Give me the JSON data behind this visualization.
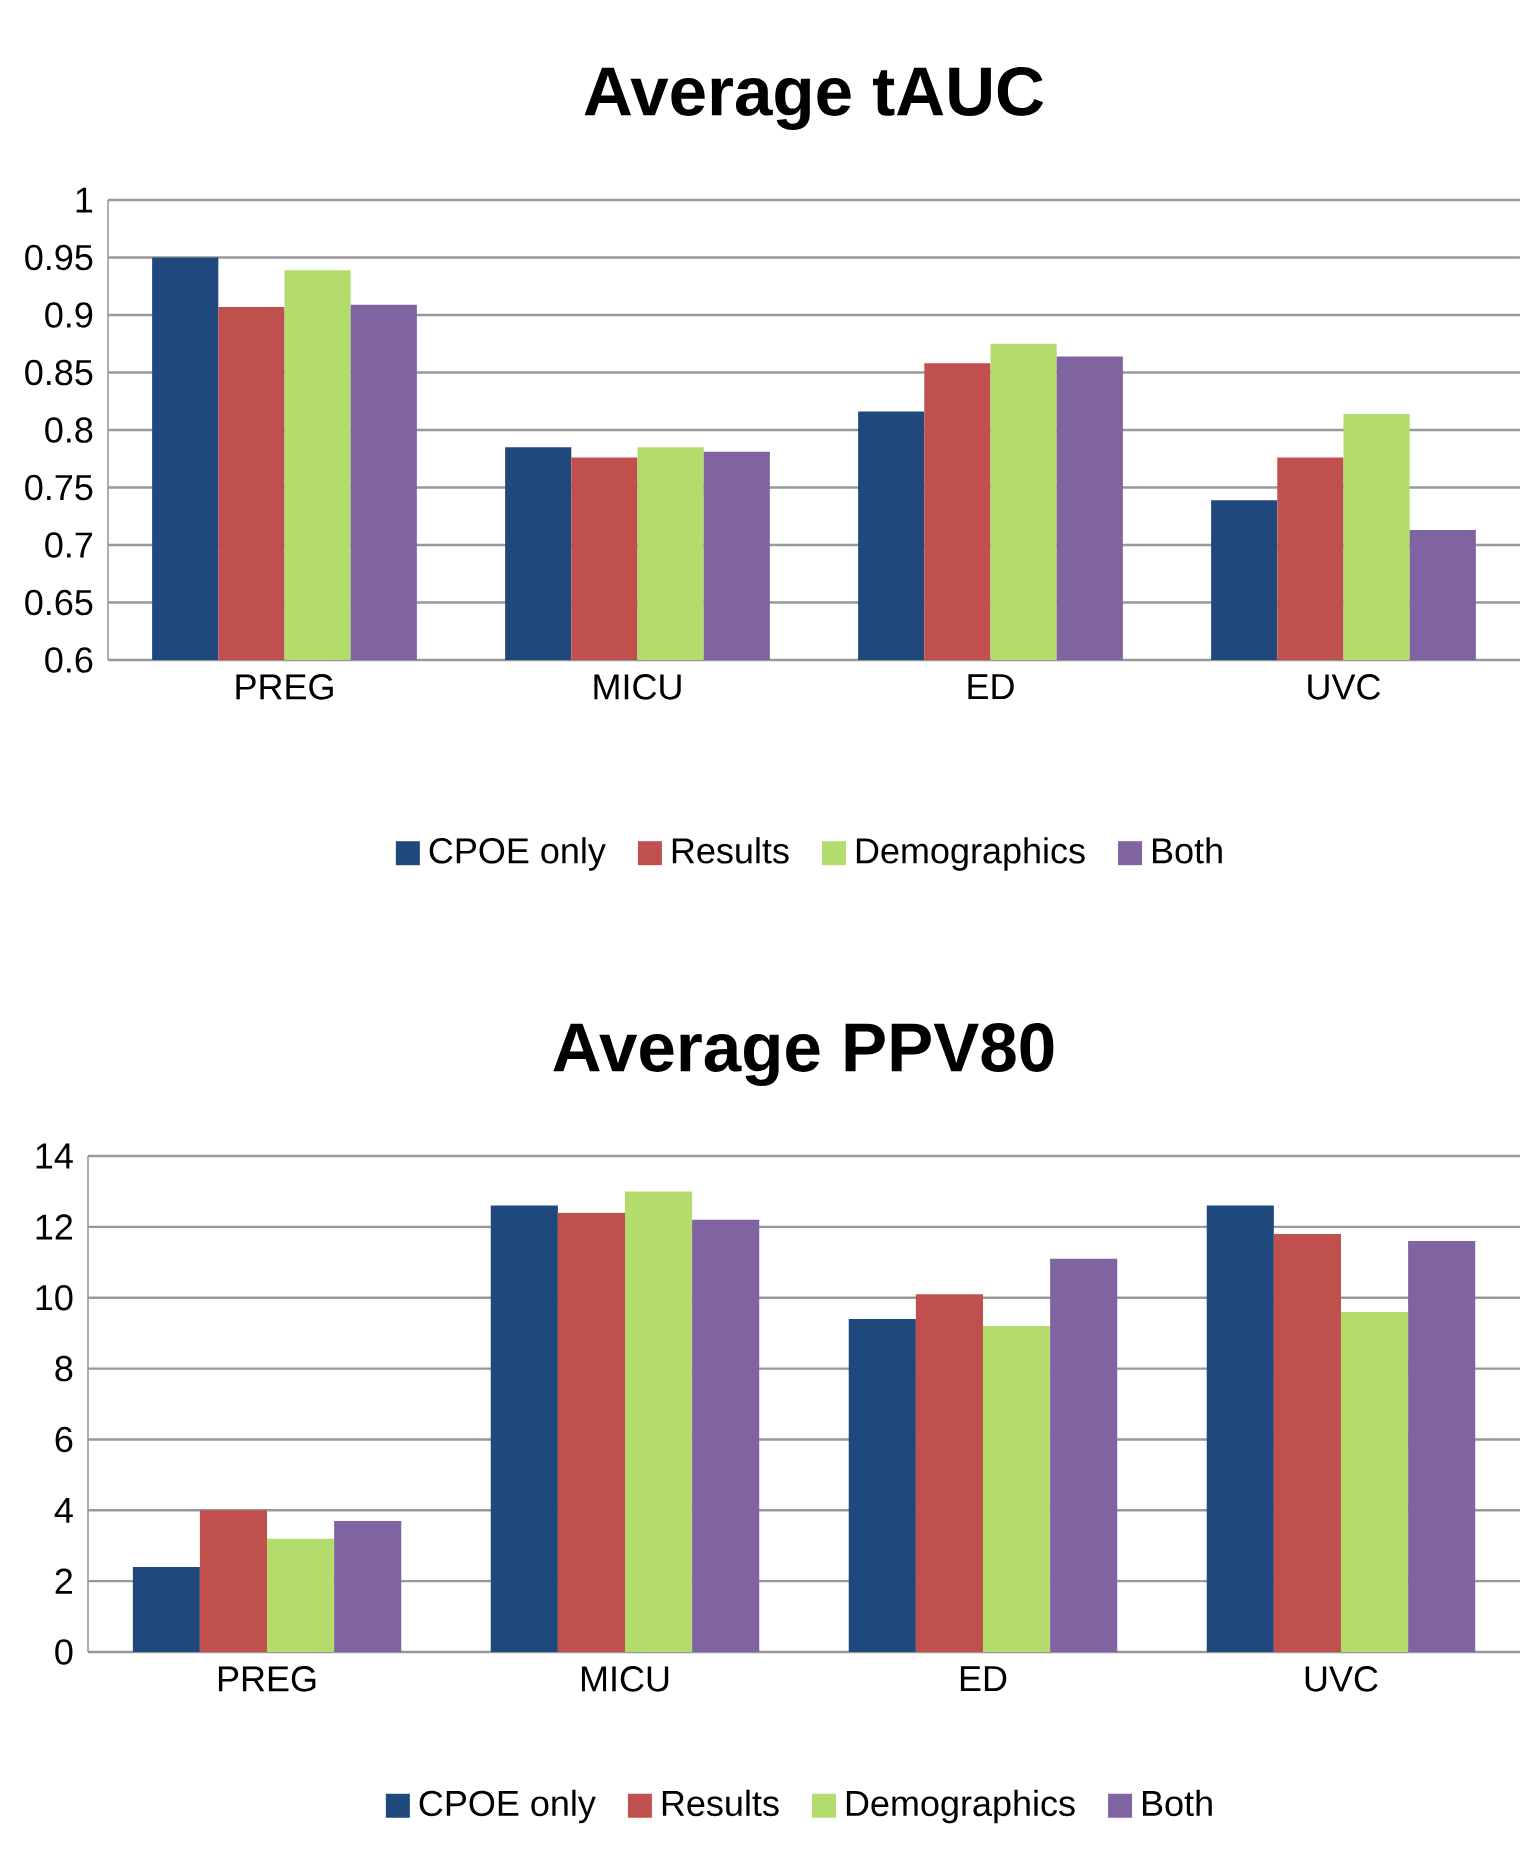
{
  "chart_data": [
    {
      "type": "bar",
      "title": "Average tAUC",
      "categories": [
        "PREG",
        "MICU",
        "ED",
        "UVC"
      ],
      "series": [
        {
          "name": "CPOE only",
          "color": "#1f497d",
          "values": [
            0.95,
            0.785,
            0.816,
            0.739
          ]
        },
        {
          "name": "Results",
          "color": "#c0504d",
          "values": [
            0.907,
            0.776,
            0.858,
            0.776
          ]
        },
        {
          "name": "Demographics",
          "color": "#b3dc6c",
          "values": [
            0.939,
            0.785,
            0.875,
            0.814
          ]
        },
        {
          "name": "Both",
          "color": "#8064a2",
          "values": [
            0.909,
            0.781,
            0.864,
            0.713
          ]
        }
      ],
      "ylim": [
        0.6,
        1
      ],
      "yticks": [
        0.6,
        0.65,
        0.7,
        0.75,
        0.8,
        0.85,
        0.9,
        0.95,
        1
      ],
      "grid": "y",
      "legend": "bottom"
    },
    {
      "type": "bar",
      "title": "Average PPV80",
      "categories": [
        "PREG",
        "MICU",
        "ED",
        "UVC"
      ],
      "series": [
        {
          "name": "CPOE only",
          "color": "#1f497d",
          "values": [
            2.4,
            12.6,
            9.4,
            12.6
          ]
        },
        {
          "name": "Results",
          "color": "#c0504d",
          "values": [
            4.0,
            12.4,
            10.1,
            11.8
          ]
        },
        {
          "name": "Demographics",
          "color": "#b3dc6c",
          "values": [
            3.2,
            13.0,
            9.2,
            9.6
          ]
        },
        {
          "name": "Both",
          "color": "#8064a2",
          "values": [
            3.7,
            12.2,
            11.1,
            11.6
          ]
        }
      ],
      "ylim": [
        0,
        14
      ],
      "yticks": [
        0,
        2,
        4,
        6,
        8,
        10,
        12,
        14
      ],
      "grid": "y",
      "legend": "bottom"
    }
  ]
}
